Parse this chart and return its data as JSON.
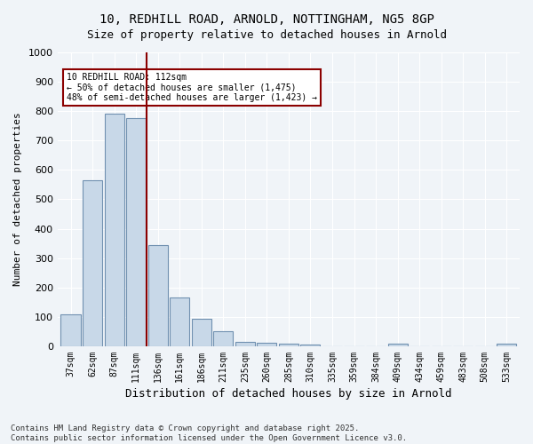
{
  "title_line1": "10, REDHILL ROAD, ARNOLD, NOTTINGHAM, NG5 8GP",
  "title_line2": "Size of property relative to detached houses in Arnold",
  "xlabel": "Distribution of detached houses by size in Arnold",
  "ylabel": "Number of detached properties",
  "categories": [
    "37sqm",
    "62sqm",
    "87sqm",
    "111sqm",
    "136sqm",
    "161sqm",
    "186sqm",
    "211sqm",
    "235sqm",
    "260sqm",
    "285sqm",
    "310sqm",
    "335sqm",
    "359sqm",
    "384sqm",
    "409sqm",
    "434sqm",
    "459sqm",
    "483sqm",
    "508sqm",
    "533sqm"
  ],
  "values": [
    110,
    565,
    790,
    775,
    345,
    165,
    95,
    50,
    15,
    12,
    10,
    5,
    0,
    0,
    0,
    8,
    0,
    0,
    0,
    0,
    8
  ],
  "bar_color": "#c8d8e8",
  "bar_edge_color": "#7090b0",
  "vline_x": 3,
  "vline_color": "#8B0000",
  "annotation_text": "10 REDHILL ROAD: 112sqm\n← 50% of detached houses are smaller (1,475)\n48% of semi-detached houses are larger (1,423) →",
  "annotation_box_color": "#8B0000",
  "ylim": [
    0,
    1000
  ],
  "yticks": [
    0,
    100,
    200,
    300,
    400,
    500,
    600,
    700,
    800,
    900,
    1000
  ],
  "background_color": "#f0f4f8",
  "grid_color": "#ffffff",
  "footer_line1": "Contains HM Land Registry data © Crown copyright and database right 2025.",
  "footer_line2": "Contains public sector information licensed under the Open Government Licence v3.0."
}
